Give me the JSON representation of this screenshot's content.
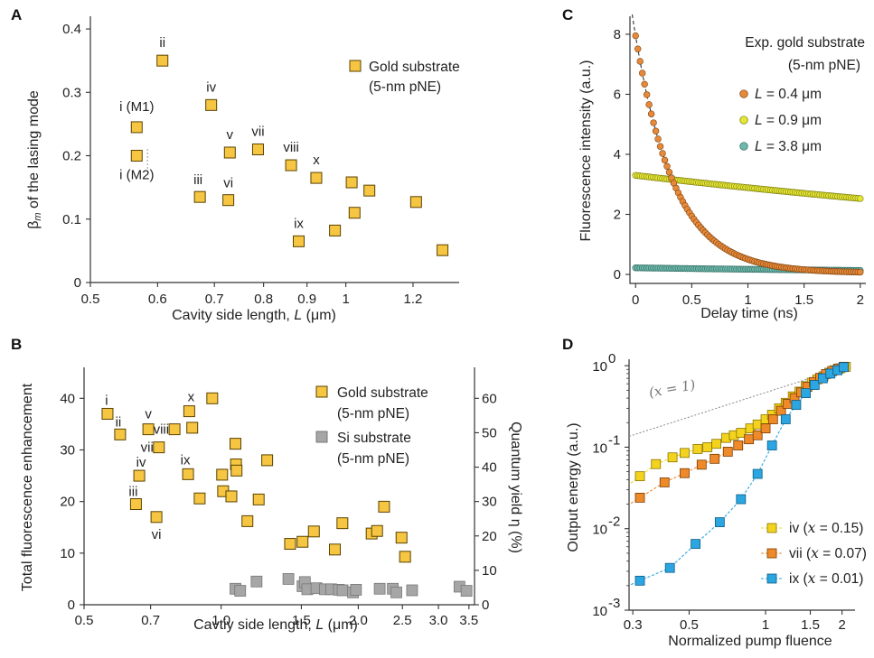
{
  "panels": {
    "A": {
      "letter": "A"
    },
    "B": {
      "letter": "B"
    },
    "C": {
      "letter": "C"
    },
    "D": {
      "letter": "D"
    }
  },
  "colors": {
    "gold_fill": "#f6c542",
    "gold_edge": "#5a4300",
    "si_fill": "#a6a6a6",
    "si_edge": "#777777",
    "c_orange": "#e8893a",
    "c_yellow": "#e4e635",
    "c_teal": "#6fb7aa",
    "d_iv": "#f3d31d",
    "d_vii": "#ee8a2a",
    "d_ix": "#2ba6e0"
  },
  "chart_data": [
    {
      "panel": "A",
      "type": "scatter",
      "xlabel": "Cavity side length, L (μm)",
      "ylabel": "βm of the lasing mode",
      "xscale": "log",
      "xlim": [
        0.5,
        1.36
      ],
      "ylim": [
        0,
        0.42
      ],
      "xticks": [
        "0.5",
        "0.6",
        "0.7",
        "0.8",
        "0.9",
        "1",
        "1.2"
      ],
      "xtick_values": [
        0.5,
        0.6,
        0.7,
        0.8,
        0.9,
        1.0,
        1.2
      ],
      "yticks": [
        "0",
        "0.1",
        "0.2",
        "0.3",
        "0.4"
      ],
      "ytick_values": [
        0,
        0.1,
        0.2,
        0.3,
        0.4
      ],
      "legend": [
        "Gold substrate",
        "(5-nm pNE)"
      ],
      "points": [
        {
          "x": 0.567,
          "y": 0.245,
          "label": "i (M1)"
        },
        {
          "x": 0.567,
          "y": 0.2,
          "label": "i (M2)"
        },
        {
          "x": 0.608,
          "y": 0.35,
          "label": "ii"
        },
        {
          "x": 0.673,
          "y": 0.135,
          "label": "iii"
        },
        {
          "x": 0.694,
          "y": 0.28,
          "label": "iv"
        },
        {
          "x": 0.73,
          "y": 0.205,
          "label": "v"
        },
        {
          "x": 0.727,
          "y": 0.13,
          "label": "vi"
        },
        {
          "x": 0.788,
          "y": 0.21,
          "label": "vii"
        },
        {
          "x": 0.862,
          "y": 0.185,
          "label": "viii"
        },
        {
          "x": 0.88,
          "y": 0.065,
          "label": "ix"
        },
        {
          "x": 0.923,
          "y": 0.165,
          "label": "x"
        },
        {
          "x": 0.971,
          "y": 0.082,
          "label": ""
        },
        {
          "x": 1.016,
          "y": 0.158,
          "label": ""
        },
        {
          "x": 1.024,
          "y": 0.11,
          "label": ""
        },
        {
          "x": 1.066,
          "y": 0.145,
          "label": ""
        },
        {
          "x": 1.21,
          "y": 0.127,
          "label": ""
        },
        {
          "x": 1.3,
          "y": 0.051,
          "label": ""
        }
      ]
    },
    {
      "panel": "B",
      "type": "scatter",
      "xlabel": "Cavtiy side length, L (μm)",
      "ylabel": "Total fluorescence enhancement",
      "ylabel_right": "Quantum yield η (%)",
      "xscale": "log",
      "xlim": [
        0.5,
        3.6
      ],
      "ylim": [
        0,
        46
      ],
      "ylim_right": [
        0,
        69
      ],
      "xticks": [
        "0.5",
        "0.7",
        "1.0",
        "1.5",
        "2.0",
        "2.5",
        "3.0",
        "3.5"
      ],
      "xtick_values": [
        0.5,
        0.7,
        1.0,
        1.5,
        2.0,
        2.5,
        3.0,
        3.5
      ],
      "yticks": [
        "0",
        "10",
        "20",
        "30",
        "40"
      ],
      "ytick_values": [
        0,
        10,
        20,
        30,
        40
      ],
      "yticks_right": [
        "0",
        "10",
        "20",
        "30",
        "40",
        "50",
        "60"
      ],
      "legend": [
        {
          "series": "Gold substrate",
          "sub": "(5-nm pNE)"
        },
        {
          "series": "Si substrate",
          "sub": "(5-nm pNE)"
        }
      ],
      "series": [
        {
          "name": "Gold substrate",
          "points": [
            {
              "x": 0.563,
              "y": 37.0,
              "label": "i"
            },
            {
              "x": 0.6,
              "y": 33.0,
              "label": "ii"
            },
            {
              "x": 0.65,
              "y": 19.5,
              "label": "iii"
            },
            {
              "x": 0.661,
              "y": 25.0,
              "label": "iv"
            },
            {
              "x": 0.692,
              "y": 34.0,
              "label": "v"
            },
            {
              "x": 0.721,
              "y": 17.0,
              "label": "vi"
            },
            {
              "x": 0.73,
              "y": 30.5,
              "label": "vii"
            },
            {
              "x": 0.79,
              "y": 34.0,
              "label": "viii"
            },
            {
              "x": 0.846,
              "y": 25.3,
              "label": "ix"
            },
            {
              "x": 0.851,
              "y": 37.5,
              "label": "x"
            },
            {
              "x": 0.864,
              "y": 34.3,
              "label": ""
            },
            {
              "x": 0.897,
              "y": 20.6,
              "label": ""
            },
            {
              "x": 0.956,
              "y": 40.0,
              "label": ""
            },
            {
              "x": 1.005,
              "y": 25.2,
              "label": ""
            },
            {
              "x": 1.01,
              "y": 22.0,
              "label": ""
            },
            {
              "x": 1.053,
              "y": 21.0,
              "label": ""
            },
            {
              "x": 1.075,
              "y": 31.2,
              "label": ""
            },
            {
              "x": 1.078,
              "y": 27.2,
              "label": ""
            },
            {
              "x": 1.081,
              "y": 26.0,
              "label": ""
            },
            {
              "x": 1.142,
              "y": 16.2,
              "label": ""
            },
            {
              "x": 1.209,
              "y": 20.4,
              "label": ""
            },
            {
              "x": 1.262,
              "y": 28.0,
              "label": ""
            },
            {
              "x": 1.417,
              "y": 11.8,
              "label": ""
            },
            {
              "x": 1.509,
              "y": 12.2,
              "label": ""
            },
            {
              "x": 1.598,
              "y": 14.2,
              "label": ""
            },
            {
              "x": 1.777,
              "y": 10.7,
              "label": ""
            },
            {
              "x": 1.846,
              "y": 15.8,
              "label": ""
            },
            {
              "x": 2.14,
              "y": 13.8,
              "label": ""
            },
            {
              "x": 2.2,
              "y": 14.3,
              "label": ""
            },
            {
              "x": 2.279,
              "y": 19.0,
              "label": ""
            },
            {
              "x": 2.489,
              "y": 13.0,
              "label": ""
            },
            {
              "x": 2.534,
              "y": 9.3,
              "label": ""
            }
          ]
        },
        {
          "name": "Si substrate",
          "points": [
            {
              "x": 1.075,
              "y": 3.1
            },
            {
              "x": 1.101,
              "y": 2.7
            },
            {
              "x": 1.196,
              "y": 4.5
            },
            {
              "x": 1.405,
              "y": 5.0
            },
            {
              "x": 1.509,
              "y": 3.6
            },
            {
              "x": 1.527,
              "y": 4.4
            },
            {
              "x": 1.546,
              "y": 3.0
            },
            {
              "x": 1.619,
              "y": 3.2
            },
            {
              "x": 1.69,
              "y": 3.0
            },
            {
              "x": 1.744,
              "y": 3.0
            },
            {
              "x": 1.813,
              "y": 2.9
            },
            {
              "x": 1.848,
              "y": 2.8
            },
            {
              "x": 1.948,
              "y": 2.4
            },
            {
              "x": 1.977,
              "y": 2.9
            },
            {
              "x": 2.229,
              "y": 3.1
            },
            {
              "x": 2.382,
              "y": 3.1
            },
            {
              "x": 2.425,
              "y": 2.4
            },
            {
              "x": 2.626,
              "y": 2.8
            },
            {
              "x": 3.336,
              "y": 3.5
            },
            {
              "x": 3.457,
              "y": 2.7
            }
          ]
        }
      ]
    },
    {
      "panel": "C",
      "type": "scatter",
      "xlabel": "Delay time (ns)",
      "ylabel": "Fluorescence intensity (a.u.)",
      "xlim": [
        -0.05,
        2.05
      ],
      "ylim": [
        -0.3,
        8.6
      ],
      "xticks": [
        "0",
        "0.5",
        "1",
        "1.5",
        "2"
      ],
      "xtick_values": [
        0,
        0.5,
        1,
        1.5,
        2
      ],
      "yticks": [
        "0",
        "2",
        "4",
        "6",
        "8"
      ],
      "ytick_values": [
        0,
        2,
        4,
        6,
        8
      ],
      "legend_title": [
        "Exp. gold substrate",
        "(5-nm pNE)"
      ],
      "series": [
        {
          "name_var": "L",
          "name_val": " = 0.4 μm",
          "amplitude": 7.9,
          "tau_ns": 0.35,
          "offset": 0.05
        },
        {
          "name_var": "L",
          "name_val": " = 0.9 μm",
          "amplitude": 3.3,
          "tau_ns": 7.5,
          "offset": 0.0
        },
        {
          "name_var": "L",
          "name_val": " = 3.8 μm",
          "amplitude": 0.22,
          "tau_ns": 4.0,
          "offset": 0.0
        }
      ],
      "samples_per_series": 100,
      "fit_line": "dashed exponential fit on L = 0.4 μm"
    },
    {
      "panel": "D",
      "type": "scatter",
      "xlabel": "Normalized pump fluence",
      "ylabel": "Output energy (a.u.)",
      "xscale": "log",
      "yscale": "log",
      "xlim": [
        0.29,
        2.25
      ],
      "ylim": [
        0.001,
        1.2
      ],
      "xticks": [
        "0.3",
        "0.5",
        "1",
        "1.5",
        "2"
      ],
      "xtick_values": [
        0.3,
        0.5,
        1,
        1.5,
        2
      ],
      "yticks": [
        "10",
        "10",
        "10",
        "10"
      ],
      "ytick_exps": [
        "-3",
        "-2",
        "-1",
        "0"
      ],
      "ytick_values": [
        0.001,
        0.01,
        0.1,
        1
      ],
      "reference_label": "(x = 1)",
      "series": [
        {
          "name": "iv",
          "x_value": "0.15",
          "points": [
            [
              0.32,
              0.044
            ],
            [
              0.37,
              0.062
            ],
            [
              0.43,
              0.075
            ],
            [
              0.48,
              0.085
            ],
            [
              0.54,
              0.095
            ],
            [
              0.59,
              0.1
            ],
            [
              0.64,
              0.11
            ],
            [
              0.7,
              0.13
            ],
            [
              0.75,
              0.14
            ],
            [
              0.8,
              0.15
            ],
            [
              0.87,
              0.17
            ],
            [
              0.93,
              0.19
            ],
            [
              1.0,
              0.22
            ],
            [
              1.06,
              0.25
            ],
            [
              1.13,
              0.3
            ],
            [
              1.2,
              0.35
            ],
            [
              1.28,
              0.42
            ],
            [
              1.36,
              0.48
            ],
            [
              1.44,
              0.56
            ],
            [
              1.52,
              0.62
            ],
            [
              1.6,
              0.68
            ],
            [
              1.69,
              0.74
            ],
            [
              1.78,
              0.82
            ],
            [
              1.87,
              0.88
            ],
            [
              1.97,
              0.93
            ],
            [
              2.07,
              0.97
            ]
          ]
        },
        {
          "name": "vii",
          "x_value": "0.07",
          "points": [
            [
              0.32,
              0.024
            ],
            [
              0.4,
              0.037
            ],
            [
              0.48,
              0.048
            ],
            [
              0.56,
              0.061
            ],
            [
              0.63,
              0.072
            ],
            [
              0.71,
              0.088
            ],
            [
              0.78,
              0.105
            ],
            [
              0.86,
              0.125
            ],
            [
              0.93,
              0.14
            ],
            [
              1.0,
              0.17
            ],
            [
              1.07,
              0.22
            ],
            [
              1.15,
              0.28
            ],
            [
              1.22,
              0.34
            ],
            [
              1.3,
              0.4
            ],
            [
              1.38,
              0.47
            ],
            [
              1.46,
              0.55
            ],
            [
              1.55,
              0.63
            ],
            [
              1.64,
              0.71
            ],
            [
              1.73,
              0.79
            ],
            [
              1.83,
              0.86
            ],
            [
              1.93,
              0.92
            ],
            [
              2.03,
              0.97
            ]
          ]
        },
        {
          "name": "ix",
          "x_value": "0.01",
          "points": [
            [
              0.32,
              0.0023
            ],
            [
              0.42,
              0.0033
            ],
            [
              0.53,
              0.0065
            ],
            [
              0.66,
              0.012
            ],
            [
              0.8,
              0.023
            ],
            [
              0.93,
              0.047
            ],
            [
              1.06,
              0.105
            ],
            [
              1.2,
              0.22
            ],
            [
              1.32,
              0.33
            ],
            [
              1.44,
              0.46
            ],
            [
              1.56,
              0.58
            ],
            [
              1.68,
              0.7
            ],
            [
              1.8,
              0.8
            ],
            [
              1.92,
              0.88
            ],
            [
              2.03,
              0.96
            ]
          ]
        }
      ]
    }
  ]
}
